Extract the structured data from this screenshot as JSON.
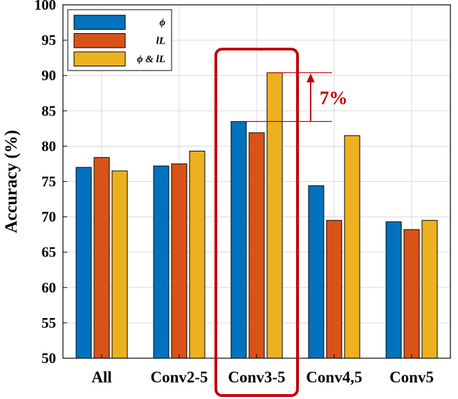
{
  "chart_data": {
    "type": "bar",
    "categories": [
      "All",
      "Conv2-5",
      "Conv3-5",
      "Conv4,5",
      "Conv5"
    ],
    "series": [
      {
        "name": "ϕ",
        "color": "#0072BD",
        "values": [
          77.0,
          77.2,
          83.5,
          74.4,
          69.3
        ]
      },
      {
        "name": "lL",
        "color": "#D95319",
        "values": [
          78.4,
          77.5,
          81.9,
          69.5,
          68.2
        ]
      },
      {
        "name": "ϕ & lL",
        "color": "#EDB120",
        "values": [
          76.5,
          79.3,
          90.4,
          81.5,
          69.5
        ]
      }
    ],
    "ylabel": "Accuracy (%)",
    "xlabel": "",
    "title": "",
    "ylim": [
      50,
      100
    ],
    "yticks": [
      "50",
      "55",
      "60",
      "65",
      "70",
      "75",
      "80",
      "85",
      "90",
      "95",
      "100"
    ],
    "grid": true,
    "legend": "top-left",
    "highlight_category": "Conv3-5",
    "highlight_color": "#C00000",
    "annotation": {
      "text": "7%",
      "color": "#C00000",
      "from": 83.5,
      "to": 90.4
    }
  }
}
